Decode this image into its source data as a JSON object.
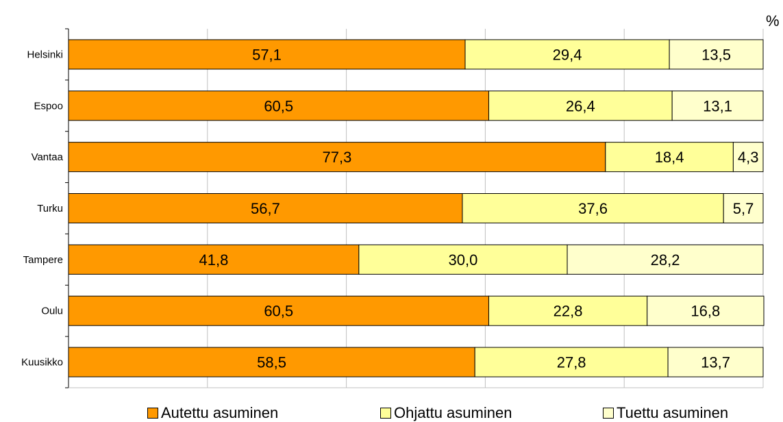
{
  "chart_data": {
    "type": "bar",
    "orientation": "horizontal",
    "stacked": true,
    "title": "",
    "unit_label": "%",
    "categories": [
      "Helsinki",
      "Espoo",
      "Vantaa",
      "Turku",
      "Tampere",
      "Oulu",
      "Kuusikko"
    ],
    "series": [
      {
        "name": "Autettu asuminen",
        "color": "#ff9900",
        "values": [
          57.1,
          60.5,
          77.3,
          56.7,
          41.8,
          60.5,
          58.5
        ],
        "labels": [
          "57,1",
          "60,5",
          "77,3",
          "56,7",
          "41,8",
          "60,5",
          "58,5"
        ]
      },
      {
        "name": "Ohjattu asuminen",
        "color": "#ffff99",
        "values": [
          29.4,
          26.4,
          18.4,
          37.6,
          30.0,
          22.8,
          27.8
        ],
        "labels": [
          "29,4",
          "26,4",
          "18,4",
          "37,6",
          "30,0",
          "22,8",
          "27,8"
        ]
      },
      {
        "name": "Tuettu asuminen",
        "color": "#ffffcc",
        "values": [
          13.5,
          13.1,
          4.3,
          5.7,
          28.2,
          16.8,
          13.7
        ],
        "labels": [
          "13,5",
          "13,1",
          "4,3",
          "5,7",
          "28,2",
          "16,8",
          "13,7"
        ]
      }
    ],
    "xlim": [
      0,
      100
    ],
    "grid": true,
    "legend_position": "bottom"
  }
}
